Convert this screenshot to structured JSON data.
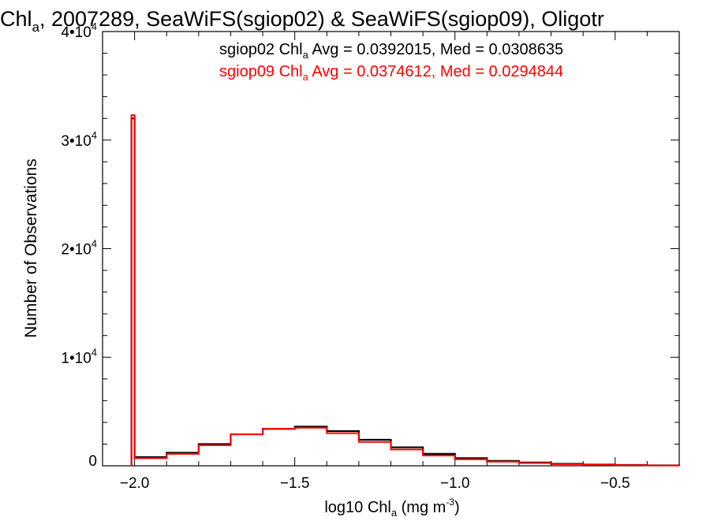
{
  "chart_data": {
    "type": "histogram",
    "title": {
      "prefix": "Chl",
      "sub": "a",
      "rest": ", 2007289, SeaWiFS(sgiop02) & SeaWiFS(sgiop09), Oligotr"
    },
    "xlabel": {
      "prefix": "log10 Chl",
      "sub": "a",
      "mid": " (mg m",
      "sup": "-3",
      "end": ")"
    },
    "ylabel": "Number of Observations",
    "xlim": [
      -2.1,
      -0.3
    ],
    "ylim": [
      0,
      40000
    ],
    "x_ticks": [
      {
        "value": -2.0,
        "label": "−2.0"
      },
      {
        "value": -1.5,
        "label": "−1.5"
      },
      {
        "value": -1.0,
        "label": "−1.0"
      },
      {
        "value": -0.5,
        "label": "−0.5"
      }
    ],
    "x_minor_step": 0.1,
    "y_ticks": [
      {
        "value": 0,
        "base": "0",
        "exp": ""
      },
      {
        "value": 10000,
        "base": "1•10",
        "exp": "4"
      },
      {
        "value": 20000,
        "base": "2•10",
        "exp": "4"
      },
      {
        "value": 30000,
        "base": "3•10",
        "exp": "4"
      },
      {
        "value": 40000,
        "base": "4•10",
        "exp": "4"
      }
    ],
    "y_minor_step": 2000,
    "legend": [
      {
        "prefix": "sgiop02 Chl",
        "sub": "a",
        "rest": " Avg = 0.0392015, Med = 0.0308635",
        "color": "#000000"
      },
      {
        "prefix": "sgiop09 Chl",
        "sub": "a",
        "rest": " Avg = 0.0374612, Med = 0.0294844",
        "color": "#ff0000"
      }
    ],
    "series": [
      {
        "name": "sgiop02",
        "color": "#000000",
        "spike": {
          "x": -2.0,
          "y": 32000
        },
        "x": [
          -2.0,
          -1.9,
          -1.8,
          -1.7,
          -1.6,
          -1.5,
          -1.4,
          -1.3,
          -1.2,
          -1.1,
          -1.0,
          -0.9,
          -0.8,
          -0.7,
          -0.6,
          -0.5,
          -0.4,
          -0.3
        ],
        "y": [
          800,
          1200,
          2000,
          2900,
          3400,
          3600,
          3200,
          2400,
          1700,
          1100,
          700,
          450,
          300,
          180,
          110,
          70,
          40,
          20
        ]
      },
      {
        "name": "sgiop09",
        "color": "#ff0000",
        "spike": {
          "x": -2.0,
          "y": 32300
        },
        "x": [
          -2.0,
          -1.9,
          -1.8,
          -1.7,
          -1.6,
          -1.5,
          -1.4,
          -1.3,
          -1.2,
          -1.1,
          -1.0,
          -0.9,
          -0.8,
          -0.7,
          -0.6,
          -0.5,
          -0.4,
          -0.3
        ],
        "y": [
          700,
          1100,
          1900,
          2900,
          3400,
          3500,
          3000,
          2200,
          1500,
          950,
          600,
          380,
          250,
          150,
          90,
          55,
          30,
          15
        ]
      }
    ]
  }
}
